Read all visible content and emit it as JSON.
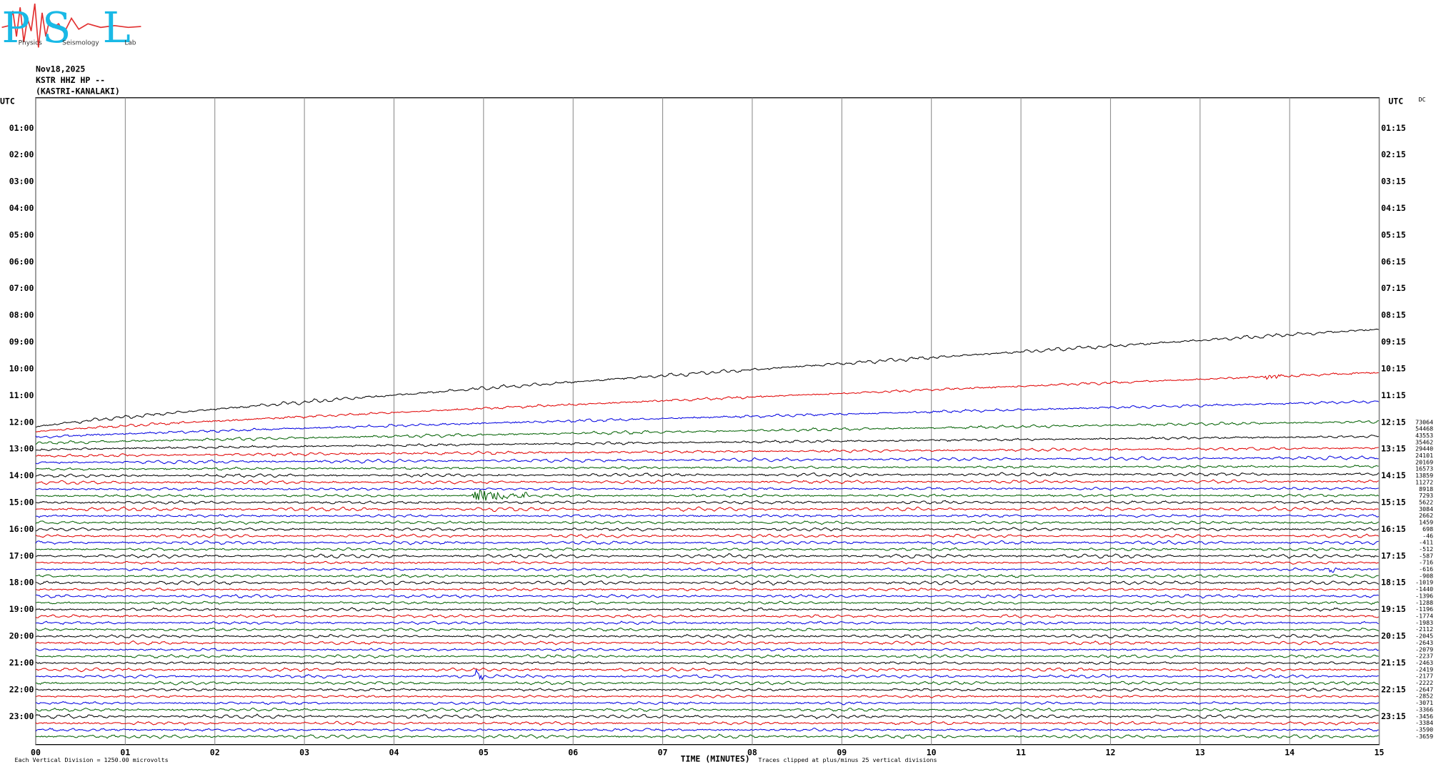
{
  "chart_data": {
    "type": "helicorder",
    "logo": {
      "letters": [
        "P",
        "S",
        "L"
      ],
      "words": [
        "Physics",
        "Seismology",
        "Lab"
      ]
    },
    "date": "Nov18,2025",
    "station": "KSTR HHZ HP --",
    "location": "(KASTRI-KANALAKI)",
    "left_header": "UTC",
    "right_header": "UTC",
    "dc_header": "DC",
    "left_labels": [
      "01:00",
      "02:00",
      "03:00",
      "04:00",
      "05:00",
      "06:00",
      "07:00",
      "08:00",
      "09:00",
      "10:00",
      "11:00",
      "12:00",
      "13:00",
      "14:00",
      "15:00",
      "16:00",
      "17:00",
      "18:00",
      "19:00",
      "20:00",
      "21:00",
      "22:00",
      "23:00"
    ],
    "right_labels": [
      "01:15",
      "02:15",
      "03:15",
      "04:15",
      "05:15",
      "06:15",
      "07:15",
      "08:15",
      "09:15",
      "10:15",
      "11:15",
      "12:15",
      "13:15",
      "14:15",
      "15:15",
      "16:15",
      "17:15",
      "18:15",
      "19:15",
      "20:15",
      "21:15",
      "22:15",
      "23:15"
    ],
    "xlim": [
      0,
      15
    ],
    "xticks": [
      {
        "value": 0,
        "label": "00"
      },
      {
        "value": 1,
        "label": "01"
      },
      {
        "value": 2,
        "label": "02"
      },
      {
        "value": 3,
        "label": "03"
      },
      {
        "value": 4,
        "label": "04"
      },
      {
        "value": 5,
        "label": "05"
      },
      {
        "value": 6,
        "label": "06"
      },
      {
        "value": 7,
        "label": "07"
      },
      {
        "value": 8,
        "label": "08"
      },
      {
        "value": 9,
        "label": "09"
      },
      {
        "value": 10,
        "label": "10"
      },
      {
        "value": 11,
        "label": "11"
      },
      {
        "value": 12,
        "label": "12"
      },
      {
        "value": 13,
        "label": "13"
      },
      {
        "value": 14,
        "label": "14"
      },
      {
        "value": 15,
        "label": "15"
      }
    ],
    "grid": true,
    "xlabel": "TIME (MINUTES)",
    "scale_note": "Each Vertical Division = 1250.00 microvolts",
    "clip_note": "Traces clipped at plus/minus 25 vertical divisions",
    "trace_colors": [
      "#000000",
      "#e00000",
      "#0000e0",
      "#006000"
    ],
    "dc_offsets": [
      73064,
      54468,
      43553,
      35462,
      29440,
      24101,
      20169,
      16573,
      13859,
      11272,
      8918,
      7293,
      5622,
      3084,
      2662,
      1459,
      698,
      -46,
      -411,
      -512,
      -587,
      -716,
      -616,
      -908,
      -1019,
      -1440,
      -1396,
      -1288,
      -1196,
      -1774,
      -1983,
      -2112,
      -2045,
      -2643,
      -2079,
      -2237,
      -2463,
      -2419,
      -2177,
      -2222,
      -2647,
      -2852,
      -3071,
      -3366,
      -3456,
      -3384,
      -3590,
      -3659
    ]
  }
}
